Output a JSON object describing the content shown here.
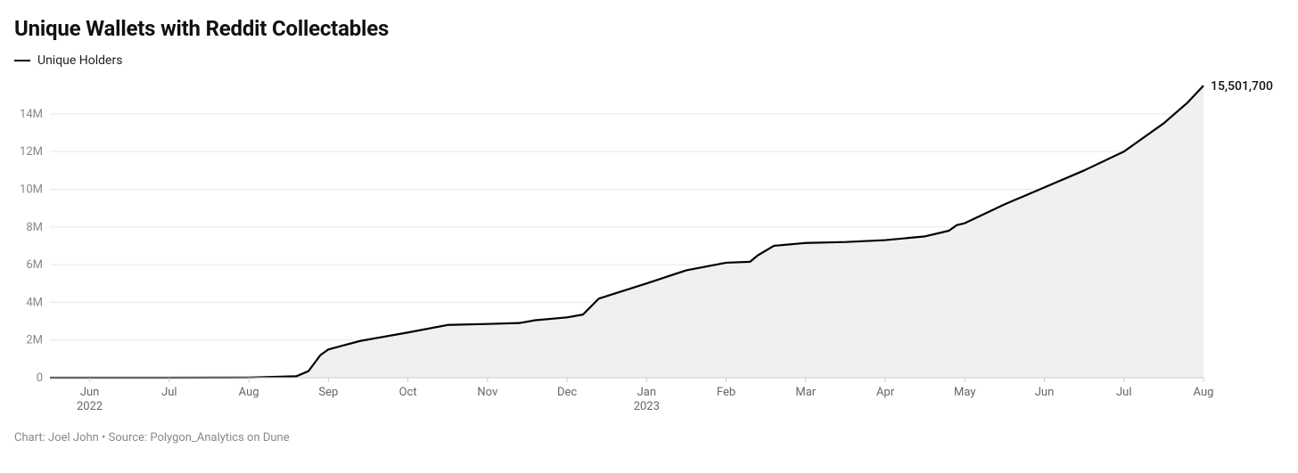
{
  "chart": {
    "type": "area-line",
    "title": "Unique Wallets with Reddit Collectables",
    "legend_label": "Unique Holders",
    "footer": "Chart: Joel John • Source: Polygon_Analytics on Dune",
    "end_value_label": "15,501,700",
    "colors": {
      "line": "#000000",
      "fill": "#f0f0f0",
      "grid": "#e7e7e7",
      "background": "#ffffff",
      "axis_label": "#888888",
      "x_label": "#666666",
      "title": "#111111",
      "end_label": "#111111"
    },
    "line_width": 2.2,
    "title_fontsize": 24,
    "axis_fontsize": 13,
    "end_label_fontsize": 14,
    "ylim": [
      0,
      15600000
    ],
    "y_ticks": [
      {
        "v": 0,
        "label": "0"
      },
      {
        "v": 2000000,
        "label": "2M"
      },
      {
        "v": 4000000,
        "label": "4M"
      },
      {
        "v": 6000000,
        "label": "6M"
      },
      {
        "v": 8000000,
        "label": "8M"
      },
      {
        "v": 10000000,
        "label": "10M"
      },
      {
        "v": 12000000,
        "label": "12M"
      },
      {
        "v": 14000000,
        "label": "14M"
      }
    ],
    "x_ticks": [
      {
        "i": 0,
        "label": "Jun",
        "sub": "2022"
      },
      {
        "i": 1,
        "label": "Jul"
      },
      {
        "i": 2,
        "label": "Aug"
      },
      {
        "i": 3,
        "label": "Sep"
      },
      {
        "i": 4,
        "label": "Oct"
      },
      {
        "i": 5,
        "label": "Nov"
      },
      {
        "i": 6,
        "label": "Dec"
      },
      {
        "i": 7,
        "label": "Jan",
        "sub": "2023"
      },
      {
        "i": 8,
        "label": "Feb"
      },
      {
        "i": 9,
        "label": "Mar"
      },
      {
        "i": 10,
        "label": "Apr"
      },
      {
        "i": 11,
        "label": "May"
      },
      {
        "i": 12,
        "label": "Jun"
      },
      {
        "i": 13,
        "label": "Jul"
      },
      {
        "i": 14,
        "label": "Aug"
      }
    ],
    "x_domain": [
      -0.5,
      14
    ],
    "series": [
      {
        "x": -0.5,
        "y": 0
      },
      {
        "x": 0,
        "y": 0
      },
      {
        "x": 1,
        "y": 0
      },
      {
        "x": 2,
        "y": 10000
      },
      {
        "x": 2.6,
        "y": 80000
      },
      {
        "x": 2.75,
        "y": 350000
      },
      {
        "x": 2.9,
        "y": 1200000
      },
      {
        "x": 3.0,
        "y": 1500000
      },
      {
        "x": 3.4,
        "y": 1950000
      },
      {
        "x": 3.6,
        "y": 2100000
      },
      {
        "x": 4.0,
        "y": 2400000
      },
      {
        "x": 4.5,
        "y": 2800000
      },
      {
        "x": 5.0,
        "y": 2850000
      },
      {
        "x": 5.4,
        "y": 2900000
      },
      {
        "x": 5.6,
        "y": 3050000
      },
      {
        "x": 6.0,
        "y": 3200000
      },
      {
        "x": 6.2,
        "y": 3350000
      },
      {
        "x": 6.4,
        "y": 4200000
      },
      {
        "x": 6.7,
        "y": 4600000
      },
      {
        "x": 7.0,
        "y": 5000000
      },
      {
        "x": 7.5,
        "y": 5700000
      },
      {
        "x": 8.0,
        "y": 6100000
      },
      {
        "x": 8.3,
        "y": 6150000
      },
      {
        "x": 8.4,
        "y": 6500000
      },
      {
        "x": 8.6,
        "y": 7000000
      },
      {
        "x": 9.0,
        "y": 7150000
      },
      {
        "x": 9.5,
        "y": 7200000
      },
      {
        "x": 10.0,
        "y": 7300000
      },
      {
        "x": 10.5,
        "y": 7500000
      },
      {
        "x": 10.8,
        "y": 7800000
      },
      {
        "x": 10.9,
        "y": 8100000
      },
      {
        "x": 11.0,
        "y": 8200000
      },
      {
        "x": 11.5,
        "y": 9200000
      },
      {
        "x": 12.0,
        "y": 10100000
      },
      {
        "x": 12.5,
        "y": 11000000
      },
      {
        "x": 13.0,
        "y": 12000000
      },
      {
        "x": 13.5,
        "y": 13500000
      },
      {
        "x": 13.8,
        "y": 14600000
      },
      {
        "x": 14.0,
        "y": 15501700
      }
    ]
  }
}
